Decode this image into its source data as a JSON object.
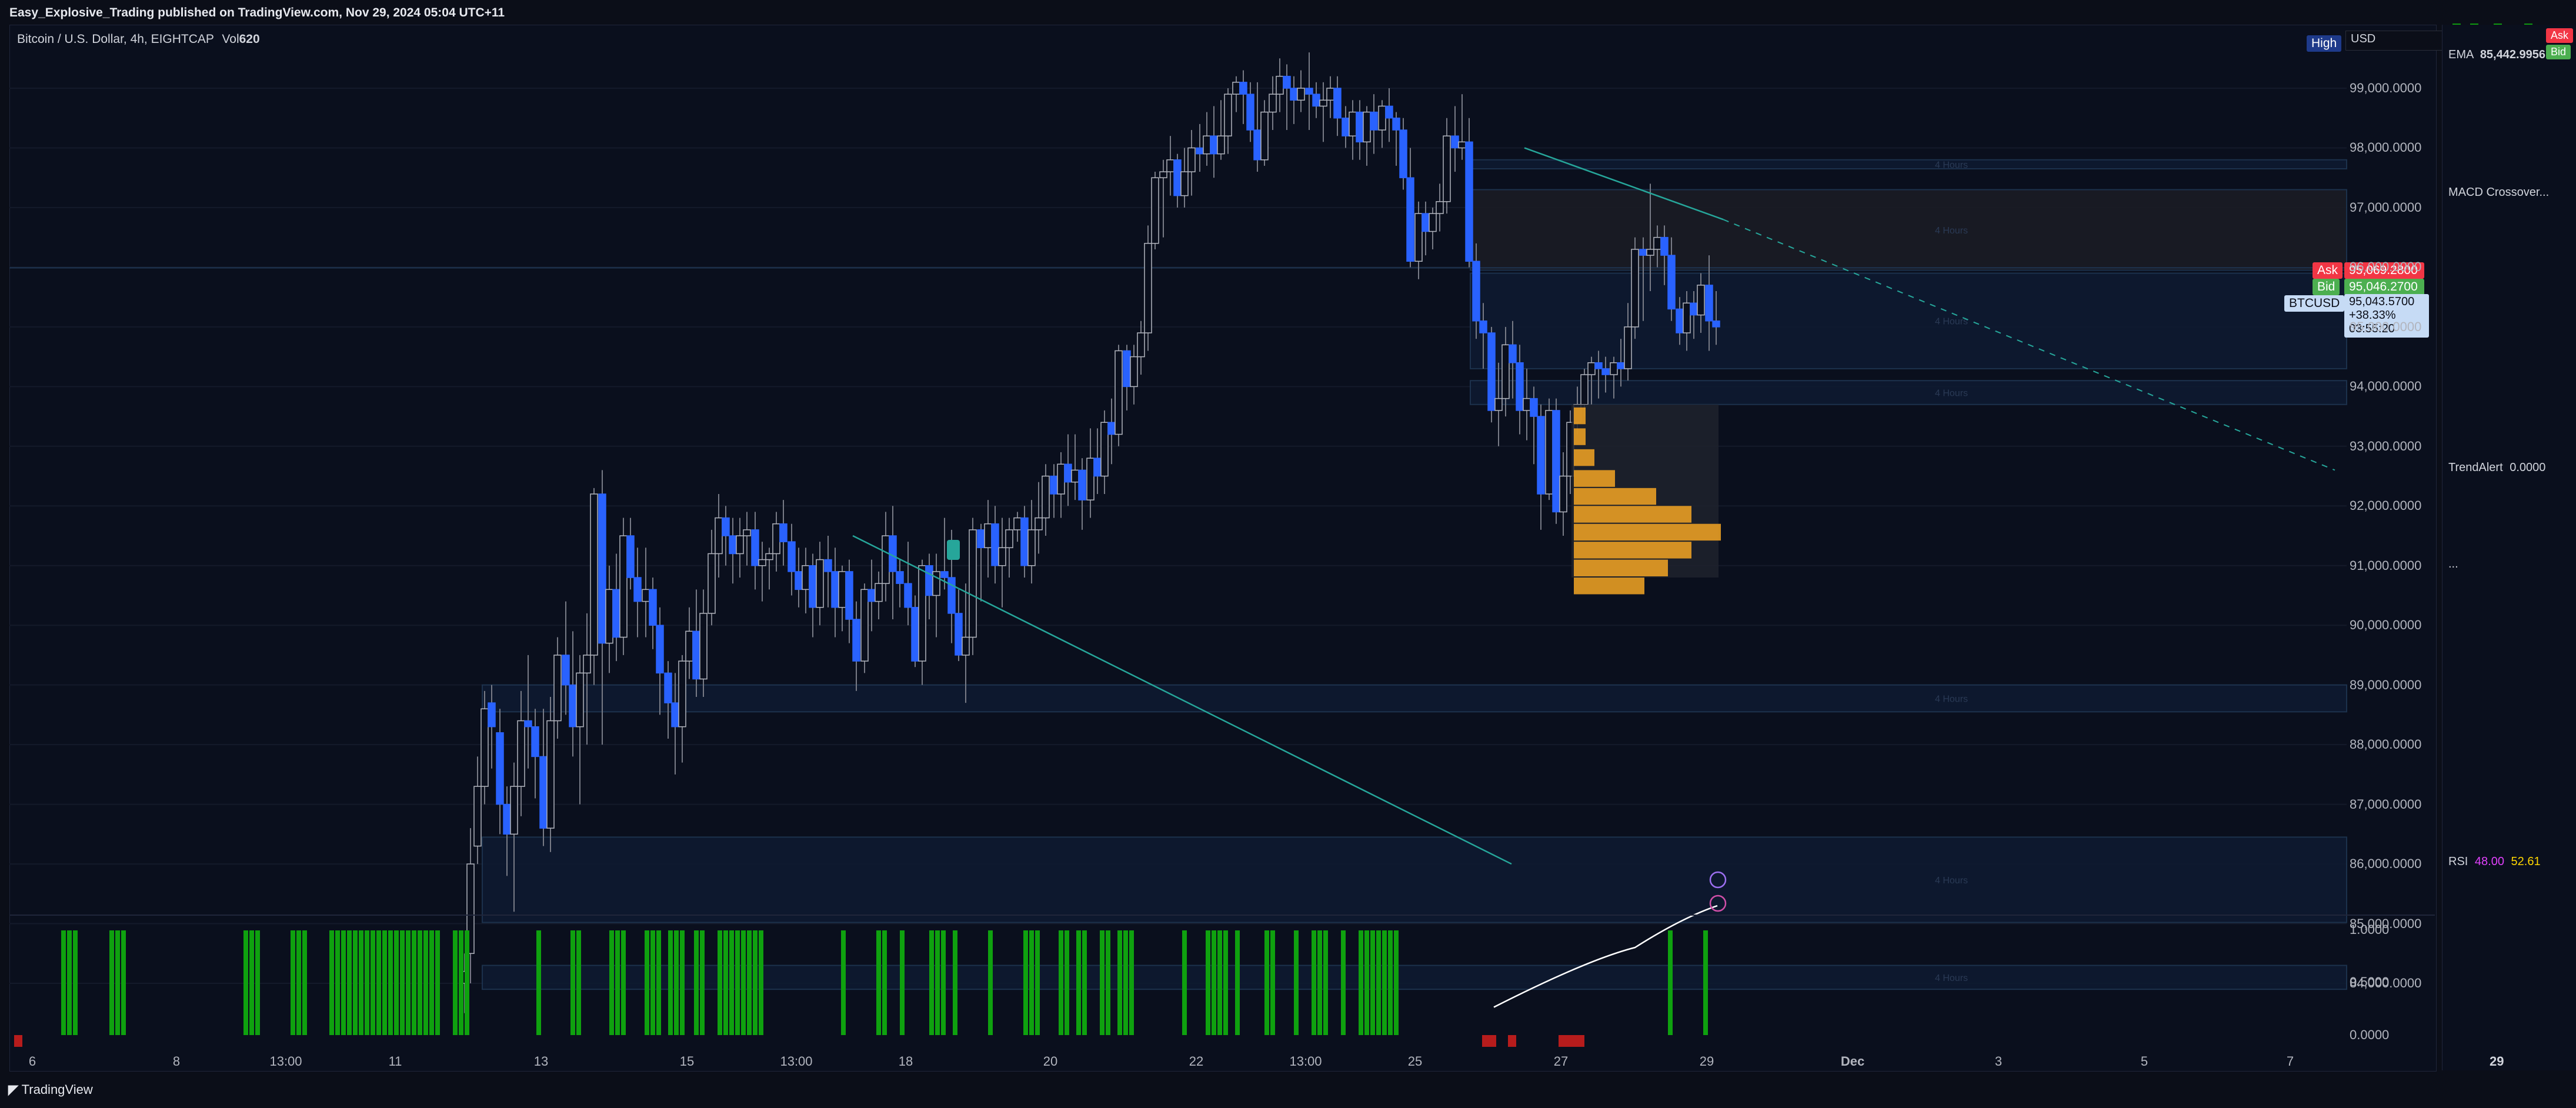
{
  "header": {
    "published": "Easy_Explosive_Trading published on TradingView.com, Nov 29, 2024 05:04 UTC+11"
  },
  "legend": {
    "symbol": "Bitcoin / U.S. Dollar, 4h, EIGHTCAP",
    "vol_label": "Vol",
    "vol_value": "620"
  },
  "price_axis": {
    "currency": "USD",
    "high_badge": "High",
    "ticks": [
      "99,000.0000",
      "98,000.0000",
      "97,000.0000",
      "96,000.0000",
      "95,000.0000",
      "94,000.0000",
      "93,000.0000",
      "92,000.0000",
      "91,000.0000",
      "90,000.0000",
      "89,000.0000",
      "88,000.0000",
      "87,000.0000",
      "86,000.0000",
      "85,000.0000",
      "84,000.0000"
    ],
    "ask_label": "Ask",
    "ask_value": "95,069.2800",
    "bid_label": "Bid",
    "bid_value": "95,046.2700",
    "symbol_badge": "BTCUSD",
    "last_value": "95,043.5700",
    "change": "+38.33%",
    "countdown": "03:55:20"
  },
  "indicator_axis": {
    "ticks": [
      "1.0000",
      "0.5000",
      "0.0000"
    ]
  },
  "time_axis": {
    "labels": [
      "6",
      "8",
      "13:00",
      "11",
      "13",
      "15",
      "13:00",
      "18",
      "20",
      "22",
      "13:00",
      "25",
      "27",
      "29",
      "Dec",
      "3",
      "5",
      "7"
    ]
  },
  "zones": {
    "label": "4 Hours"
  },
  "side_panel": {
    "ema_label": "EMA",
    "ema_value": "85,442.9956",
    "ask_label": "Ask",
    "bid_label": "Bid",
    "macd_label": "MACD Crossover...",
    "trendalert_label": "TrendAlert",
    "trendalert_value": "0.0000",
    "hist_label": "...",
    "rsi_label": "RSI",
    "rsi_value1": "48.00",
    "rsi_value2": "52.61",
    "date_label": "29"
  },
  "footer": {
    "brand": "TradingView"
  },
  "colors": {
    "bull": "#2962ff",
    "bear": "#0a0f1d",
    "green": "#0fa10f",
    "red": "#b71c1c",
    "teal": "#26a69a",
    "orange": "#f5a623",
    "ask": "#f23645",
    "bid": "#4caf50"
  }
}
